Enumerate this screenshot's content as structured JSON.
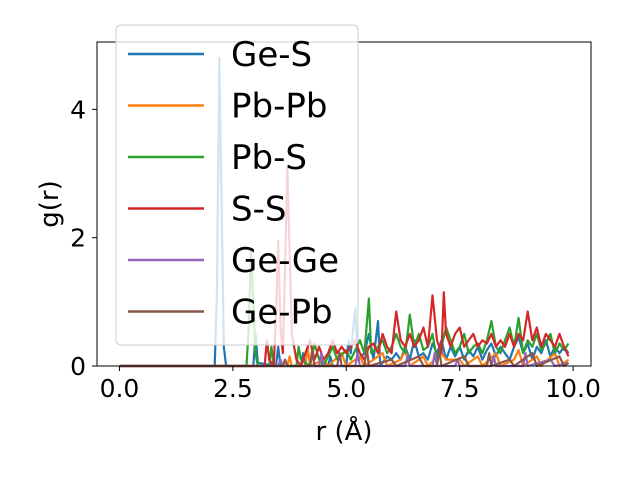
{
  "chart_data": {
    "type": "line",
    "title": "",
    "xlabel": "r (Å)",
    "ylabel": "g(r)",
    "xlim": [
      -0.495,
      10.395
    ],
    "ylim": [
      0,
      5.05
    ],
    "xticks": [
      0.0,
      2.5,
      5.0,
      7.5,
      10.0
    ],
    "xtick_labels": [
      "0.0",
      "2.5",
      "5.0",
      "7.5",
      "10.0"
    ],
    "yticks": [
      0,
      2,
      4
    ],
    "ytick_labels": [
      "0",
      "2",
      "4"
    ],
    "grid": false,
    "legend": "top-left",
    "series": [
      {
        "name": "Ge-S",
        "color": "#1f77b4",
        "points": [
          [
            0,
            0
          ],
          [
            2.1,
            0
          ],
          [
            2.15,
            1.2
          ],
          [
            2.2,
            4.8
          ],
          [
            2.25,
            2.6
          ],
          [
            2.3,
            0.3
          ],
          [
            2.35,
            0
          ],
          [
            2.95,
            0
          ],
          [
            3.0,
            0.5
          ],
          [
            3.05,
            0.05
          ],
          [
            3.45,
            0
          ],
          [
            3.5,
            0.3
          ],
          [
            3.55,
            0
          ],
          [
            4.0,
            0
          ],
          [
            4.05,
            0.2
          ],
          [
            4.1,
            0
          ],
          [
            4.6,
            0
          ],
          [
            4.65,
            0.15
          ],
          [
            4.7,
            0
          ],
          [
            5.0,
            0
          ],
          [
            5.05,
            0.4
          ],
          [
            5.1,
            0.2
          ],
          [
            5.2,
            0.9
          ],
          [
            5.25,
            0.1
          ],
          [
            5.4,
            0.2
          ],
          [
            5.5,
            0.5
          ],
          [
            5.6,
            0.1
          ],
          [
            5.7,
            0.7
          ],
          [
            5.75,
            0
          ],
          [
            5.9,
            0.15
          ],
          [
            6.0,
            0.1
          ],
          [
            6.1,
            0.2
          ],
          [
            6.2,
            0.1
          ],
          [
            6.3,
            0.3
          ],
          [
            6.4,
            0.1
          ],
          [
            6.5,
            0.4
          ],
          [
            6.6,
            0.15
          ],
          [
            6.7,
            0.2
          ],
          [
            6.8,
            0.1
          ],
          [
            6.9,
            0.35
          ],
          [
            7.0,
            0.2
          ],
          [
            7.1,
            0.4
          ],
          [
            7.2,
            0.1
          ],
          [
            7.3,
            0.3
          ],
          [
            7.4,
            0.15
          ],
          [
            7.5,
            0.3
          ],
          [
            7.6,
            0.1
          ],
          [
            7.7,
            0.25
          ],
          [
            7.8,
            0.15
          ],
          [
            7.9,
            0.3
          ],
          [
            8.0,
            0.1
          ],
          [
            8.1,
            0.25
          ],
          [
            8.2,
            0.35
          ],
          [
            8.3,
            0.15
          ],
          [
            8.4,
            0.3
          ],
          [
            8.5,
            0.2
          ],
          [
            8.6,
            0.1
          ],
          [
            8.7,
            0.3
          ],
          [
            8.8,
            0.45
          ],
          [
            8.9,
            0.2
          ],
          [
            9.0,
            0.35
          ],
          [
            9.1,
            0.1
          ],
          [
            9.2,
            0.3
          ],
          [
            9.3,
            0.2
          ],
          [
            9.4,
            0.4
          ],
          [
            9.5,
            0.15
          ],
          [
            9.6,
            0.3
          ],
          [
            9.7,
            0.2
          ],
          [
            9.8,
            0.3
          ],
          [
            9.9,
            0.2
          ]
        ]
      },
      {
        "name": "Pb-Pb",
        "color": "#ff7f0e",
        "points": [
          [
            0,
            0
          ],
          [
            3.7,
            0
          ],
          [
            3.75,
            0.15
          ],
          [
            3.8,
            0
          ],
          [
            4.1,
            0
          ],
          [
            4.15,
            0.3
          ],
          [
            4.2,
            0
          ],
          [
            4.5,
            0.1
          ],
          [
            4.6,
            0
          ],
          [
            4.9,
            0.2
          ],
          [
            5.0,
            0
          ],
          [
            5.3,
            0.15
          ],
          [
            5.4,
            0
          ],
          [
            5.8,
            0.2
          ],
          [
            5.9,
            0
          ],
          [
            6.2,
            0.1
          ],
          [
            6.3,
            0.25
          ],
          [
            6.4,
            0
          ],
          [
            6.7,
            0.15
          ],
          [
            6.8,
            0
          ],
          [
            7.1,
            0.2
          ],
          [
            7.2,
            0.1
          ],
          [
            7.5,
            0.1
          ],
          [
            7.6,
            0
          ],
          [
            7.9,
            0.15
          ],
          [
            8.0,
            0
          ],
          [
            8.3,
            0.2
          ],
          [
            8.4,
            0
          ],
          [
            8.7,
            0.1
          ],
          [
            8.8,
            0.25
          ],
          [
            8.9,
            0
          ],
          [
            9.2,
            0.15
          ],
          [
            9.3,
            0
          ],
          [
            9.6,
            0.2
          ],
          [
            9.7,
            0
          ],
          [
            9.9,
            0.1
          ]
        ]
      },
      {
        "name": "Pb-S",
        "color": "#2ca02c",
        "points": [
          [
            0,
            0
          ],
          [
            2.8,
            0
          ],
          [
            2.85,
            0.6
          ],
          [
            2.9,
            1.8
          ],
          [
            2.95,
            1.0
          ],
          [
            3.0,
            0.2
          ],
          [
            3.05,
            0
          ],
          [
            3.3,
            0
          ],
          [
            3.35,
            0.3
          ],
          [
            3.4,
            0
          ],
          [
            3.9,
            0
          ],
          [
            3.95,
            0.3
          ],
          [
            4.0,
            0.1
          ],
          [
            4.2,
            0
          ],
          [
            4.3,
            0.35
          ],
          [
            4.4,
            0.1
          ],
          [
            4.5,
            0
          ],
          [
            4.7,
            0.3
          ],
          [
            4.8,
            0.1
          ],
          [
            5.0,
            0.25
          ],
          [
            5.1,
            0.1
          ],
          [
            5.3,
            0.4
          ],
          [
            5.4,
            0.2
          ],
          [
            5.5,
            1.05
          ],
          [
            5.55,
            0.2
          ],
          [
            5.7,
            0.3
          ],
          [
            5.8,
            0.4
          ],
          [
            5.9,
            0.2
          ],
          [
            6.0,
            0.3
          ],
          [
            6.1,
            0.5
          ],
          [
            6.2,
            0.3
          ],
          [
            6.3,
            0.2
          ],
          [
            6.4,
            0.8
          ],
          [
            6.5,
            0.3
          ],
          [
            6.6,
            0.5
          ],
          [
            6.7,
            0.25
          ],
          [
            6.8,
            0.3
          ],
          [
            6.9,
            0.5
          ],
          [
            7.0,
            0.1
          ],
          [
            7.1,
            0.3
          ],
          [
            7.2,
            0.6
          ],
          [
            7.3,
            0.4
          ],
          [
            7.4,
            0.2
          ],
          [
            7.5,
            0.3
          ],
          [
            7.6,
            0.5
          ],
          [
            7.7,
            0.2
          ],
          [
            7.8,
            0.3
          ],
          [
            7.9,
            0.35
          ],
          [
            8.0,
            0.2
          ],
          [
            8.1,
            0.4
          ],
          [
            8.2,
            0.7
          ],
          [
            8.3,
            0.3
          ],
          [
            8.4,
            0.2
          ],
          [
            8.5,
            0.4
          ],
          [
            8.6,
            0.6
          ],
          [
            8.7,
            0.3
          ],
          [
            8.8,
            0.75
          ],
          [
            8.9,
            0.2
          ],
          [
            9.0,
            0.4
          ],
          [
            9.1,
            0.3
          ],
          [
            9.2,
            0.5
          ],
          [
            9.3,
            0.25
          ],
          [
            9.4,
            0.35
          ],
          [
            9.5,
            0.5
          ],
          [
            9.6,
            0.2
          ],
          [
            9.7,
            0.35
          ],
          [
            9.8,
            0.25
          ],
          [
            9.9,
            0.35
          ]
        ]
      },
      {
        "name": "S-S",
        "color": "#d62728",
        "points": [
          [
            0,
            0
          ],
          [
            3.2,
            0
          ],
          [
            3.25,
            0.4
          ],
          [
            3.3,
            0.1
          ],
          [
            3.4,
            0
          ],
          [
            3.45,
            0.8
          ],
          [
            3.5,
            1.95
          ],
          [
            3.55,
            0.6
          ],
          [
            3.6,
            0.2
          ],
          [
            3.65,
            1.5
          ],
          [
            3.7,
            3.1
          ],
          [
            3.75,
            1.8
          ],
          [
            3.8,
            0.5
          ],
          [
            3.9,
            0.1
          ],
          [
            4.0,
            0
          ],
          [
            4.1,
            0.2
          ],
          [
            4.2,
            0.4
          ],
          [
            4.3,
            0.1
          ],
          [
            4.4,
            0.3
          ],
          [
            4.5,
            0.1
          ],
          [
            4.6,
            0.2
          ],
          [
            4.7,
            0.4
          ],
          [
            4.8,
            0.2
          ],
          [
            4.9,
            0.3
          ],
          [
            5.0,
            0.2
          ],
          [
            5.1,
            0.3
          ],
          [
            5.2,
            0.4
          ],
          [
            5.3,
            0.2
          ],
          [
            5.4,
            0.1
          ],
          [
            5.5,
            0.3
          ],
          [
            5.6,
            0.35
          ],
          [
            5.7,
            0.2
          ],
          [
            5.8,
            0.5
          ],
          [
            5.9,
            0.3
          ],
          [
            6.0,
            0.2
          ],
          [
            6.1,
            0.85
          ],
          [
            6.2,
            0.4
          ],
          [
            6.3,
            0.3
          ],
          [
            6.4,
            0.5
          ],
          [
            6.5,
            0.3
          ],
          [
            6.6,
            0.4
          ],
          [
            6.7,
            0.6
          ],
          [
            6.8,
            0.3
          ],
          [
            6.9,
            1.1
          ],
          [
            7.0,
            0.4
          ],
          [
            7.1,
            0.2
          ],
          [
            7.15,
            1.15
          ],
          [
            7.2,
            0.5
          ],
          [
            7.3,
            0.3
          ],
          [
            7.4,
            0.5
          ],
          [
            7.5,
            0.6
          ],
          [
            7.6,
            0.3
          ],
          [
            7.7,
            0.4
          ],
          [
            7.8,
            0.5
          ],
          [
            7.9,
            0.3
          ],
          [
            8.0,
            0.4
          ],
          [
            8.1,
            0.35
          ],
          [
            8.2,
            0.5
          ],
          [
            8.3,
            0.3
          ],
          [
            8.4,
            0.4
          ],
          [
            8.5,
            0.3
          ],
          [
            8.6,
            0.5
          ],
          [
            8.7,
            0.3
          ],
          [
            8.8,
            0.5
          ],
          [
            8.9,
            0.4
          ],
          [
            9.0,
            0.85
          ],
          [
            9.1,
            0.4
          ],
          [
            9.2,
            0.6
          ],
          [
            9.3,
            0.3
          ],
          [
            9.4,
            0.5
          ],
          [
            9.5,
            0.4
          ],
          [
            9.6,
            0.3
          ],
          [
            9.7,
            0.5
          ],
          [
            9.8,
            0.3
          ],
          [
            9.9,
            0.15
          ]
        ]
      },
      {
        "name": "Ge-Ge",
        "color": "#9467bd",
        "points": [
          [
            0,
            0
          ],
          [
            3.5,
            0
          ],
          [
            3.55,
            0.1
          ],
          [
            3.6,
            0
          ],
          [
            4.4,
            0
          ],
          [
            4.45,
            0.2
          ],
          [
            4.5,
            0
          ],
          [
            5.2,
            0
          ],
          [
            5.25,
            0.2
          ],
          [
            5.3,
            0
          ],
          [
            6.3,
            0
          ],
          [
            6.35,
            0.15
          ],
          [
            6.4,
            0
          ],
          [
            6.9,
            0
          ],
          [
            6.95,
            0.2
          ],
          [
            7.0,
            0
          ],
          [
            7.4,
            0
          ],
          [
            7.45,
            0.1
          ],
          [
            7.5,
            0
          ],
          [
            8.2,
            0
          ],
          [
            8.25,
            0.15
          ],
          [
            8.3,
            0
          ],
          [
            8.9,
            0
          ],
          [
            8.95,
            0.2
          ],
          [
            9.0,
            0
          ],
          [
            9.5,
            0.1
          ],
          [
            9.6,
            0
          ],
          [
            9.9,
            0.05
          ]
        ]
      },
      {
        "name": "Ge-Pb",
        "color": "#8c564b",
        "points": [
          [
            0,
            0
          ],
          [
            3.6,
            0
          ],
          [
            3.65,
            0.1
          ],
          [
            3.7,
            0
          ],
          [
            4.2,
            0
          ],
          [
            4.25,
            0.25
          ],
          [
            4.3,
            0
          ],
          [
            4.8,
            0
          ],
          [
            4.85,
            0.2
          ],
          [
            4.9,
            0
          ],
          [
            5.4,
            0
          ],
          [
            5.45,
            0.3
          ],
          [
            5.5,
            0
          ],
          [
            6.0,
            0.1
          ],
          [
            6.1,
            0
          ],
          [
            6.6,
            0.15
          ],
          [
            6.7,
            0
          ],
          [
            7.0,
            0
          ],
          [
            7.05,
            0.25
          ],
          [
            7.1,
            0
          ],
          [
            7.6,
            0.15
          ],
          [
            7.7,
            0
          ],
          [
            8.1,
            0
          ],
          [
            8.15,
            0.2
          ],
          [
            8.2,
            0
          ],
          [
            8.6,
            0.1
          ],
          [
            8.7,
            0
          ],
          [
            9.1,
            0.2
          ],
          [
            9.2,
            0
          ],
          [
            9.7,
            0.15
          ],
          [
            9.8,
            0
          ],
          [
            9.9,
            0.05
          ]
        ]
      }
    ]
  }
}
